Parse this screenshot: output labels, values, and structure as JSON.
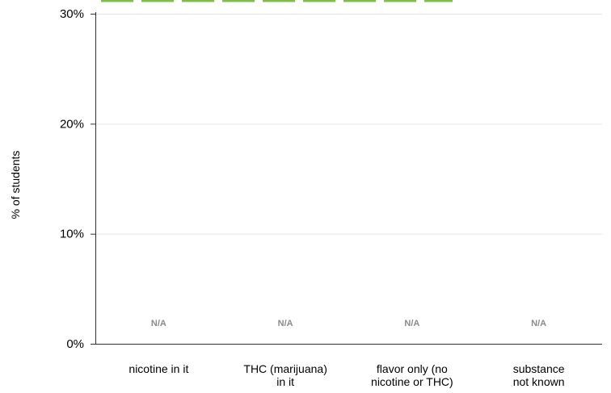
{
  "chart_data": {
    "type": "bar",
    "categories": [
      [
        "nicotine in it"
      ],
      [
        "THC (marijuana)",
        "in it"
      ],
      [
        "flavor only (no",
        "nicotine or THC)"
      ],
      [
        "substance",
        "not known"
      ]
    ],
    "values": [
      null,
      null,
      null,
      null
    ],
    "data_labels": [
      "N/A",
      "N/A",
      "N/A",
      "N/A"
    ],
    "ylabel": "% of students",
    "ylim": [
      0,
      30
    ],
    "yticks": [
      0,
      10,
      20,
      30
    ],
    "ytick_labels": [
      "0%",
      "10%",
      "20%",
      "30%"
    ],
    "grid": true,
    "colors": {
      "axis": "#333333",
      "grid": "#e6e6e6",
      "na_label": "#8a8a8a",
      "top_accent": "#7cc142"
    }
  }
}
